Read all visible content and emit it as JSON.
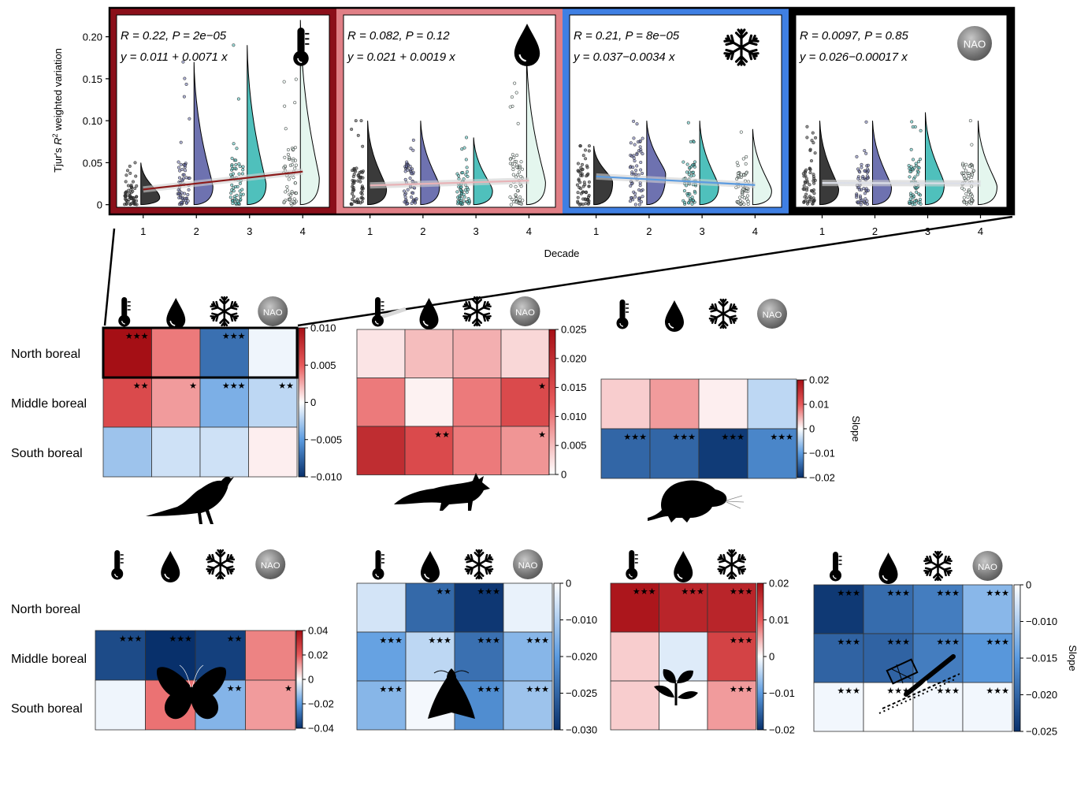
{
  "colors": {
    "pos": "#a50f15",
    "neg": "#08306b",
    "line_pos": "#8b1a1a",
    "line_neg": "#5b9be0",
    "line_flat": "#dcdfe8",
    "rain1": "#3a3a3a",
    "rain2": "#6e72b0",
    "rain3": "#4fc0bc",
    "rain4": "#e4f6ee"
  },
  "top_panel": {
    "ylabel_prefix": "Tjur's",
    "ylabel_r": "R",
    "ylabel_sup": "2",
    "ylabel_suffix": "weighted variation",
    "xlabel": "Decade",
    "yticks": [
      "0",
      "0.05",
      "0.10",
      "0.15",
      "0.20"
    ],
    "xticks": [
      "1",
      "2",
      "3",
      "4"
    ]
  },
  "row_labels": [
    "North boreal",
    "Middle boreal",
    "South boreal"
  ],
  "nao_label": "NAO",
  "stars": {
    "one": "★",
    "two": "★★",
    "three": "★★★"
  },
  "slope_label": "Slope",
  "chart_data": [
    {
      "type": "scatter",
      "panel": "temperature",
      "icon": "thermometer-icon",
      "frame_color": "#8b0f1a",
      "r_text": "R = 0.22, P = 2e−05",
      "eq_text": "y = 0.011 + 0.0071 x",
      "x": [
        1,
        2,
        3,
        4
      ],
      "medians": [
        0.012,
        0.025,
        0.028,
        0.035
      ],
      "max": [
        0.05,
        0.17,
        0.19,
        0.22
      ],
      "fit": {
        "intercept": 0.011,
        "slope": 0.0071
      },
      "xlim": [
        0.5,
        4.5
      ],
      "ylim": [
        -0.005,
        0.225
      ]
    },
    {
      "type": "scatter",
      "panel": "precipitation",
      "icon": "water-drop-icon",
      "frame_color": "#e07f86",
      "r_text": "R = 0.082, P = 0.12",
      "eq_text": "y = 0.021 + 0.0019 x",
      "x": [
        1,
        2,
        3,
        4
      ],
      "medians": [
        0.022,
        0.025,
        0.02,
        0.03
      ],
      "max": [
        0.1,
        0.1,
        0.08,
        0.18
      ],
      "fit": {
        "intercept": 0.021,
        "slope": 0.0019
      },
      "xlim": [
        0.5,
        4.5
      ],
      "ylim": [
        -0.005,
        0.225
      ]
    },
    {
      "type": "scatter",
      "panel": "snow",
      "icon": "snowflake-icon",
      "frame_color": "#3f7fe3",
      "r_text": "R = 0.21, P = 8e−05",
      "eq_text": "y = 0.037−0.0034 x",
      "x": [
        1,
        2,
        3,
        4
      ],
      "medians": [
        0.03,
        0.04,
        0.025,
        0.02
      ],
      "max": [
        0.07,
        0.1,
        0.1,
        0.09
      ],
      "fit": {
        "intercept": 0.037,
        "slope": -0.0034
      },
      "xlim": [
        0.5,
        4.5
      ],
      "ylim": [
        -0.005,
        0.225
      ]
    },
    {
      "type": "scatter",
      "panel": "nao",
      "icon": "nao-badge-icon",
      "frame_color": "#000000",
      "r_text": "R = 0.0097, P = 0.85",
      "eq_text": "y = 0.026−0.00017 x",
      "x": [
        1,
        2,
        3,
        4
      ],
      "medians": [
        0.022,
        0.024,
        0.028,
        0.025
      ],
      "max": [
        0.1,
        0.1,
        0.11,
        0.1
      ],
      "fit": {
        "intercept": 0.026,
        "slope": -0.00017
      },
      "xlim": [
        0.5,
        4.5
      ],
      "ylim": [
        -0.005,
        0.225
      ]
    },
    {
      "type": "heatmap",
      "taxon": "birds",
      "silhouette": "bird-icon",
      "rows": [
        "North boreal",
        "Middle boreal",
        "South boreal"
      ],
      "columns": [
        "thermometer",
        "drop",
        "snowflake",
        "NAO"
      ],
      "values": [
        [
          0.01,
          0.004,
          -0.007,
          -0.0005
        ],
        [
          0.006,
          0.003,
          -0.004,
          -0.002
        ],
        [
          -0.003,
          -0.0015,
          -0.0015,
          0.0005
        ]
      ],
      "stars": [
        [
          3,
          0,
          3,
          0
        ],
        [
          2,
          1,
          3,
          2
        ],
        [
          0,
          0,
          0,
          0
        ]
      ],
      "vrange": [
        -0.01,
        0.01
      ],
      "cbar_ticks": [
        "0.010",
        "0.005",
        "0",
        "−0.005",
        "−0.010"
      ],
      "highlight_row": 0
    },
    {
      "type": "heatmap",
      "taxon": "mammals",
      "silhouette": "fox-icon",
      "rows": [
        "North boreal",
        "Middle boreal",
        "South boreal"
      ],
      "columns": [
        "thermometer",
        "drop",
        "snowflake",
        "NAO"
      ],
      "values": [
        [
          0.002,
          0.005,
          0.006,
          0.003
        ],
        [
          0.01,
          0.001,
          0.01,
          0.015
        ],
        [
          0.02,
          0.015,
          0.01,
          0.008
        ]
      ],
      "stars": [
        [
          0,
          0,
          0,
          0
        ],
        [
          0,
          0,
          0,
          1
        ],
        [
          0,
          2,
          0,
          1
        ]
      ],
      "vrange": [
        0,
        0.025
      ],
      "cbar_ticks": [
        "0.025",
        "0.020",
        "0.015",
        "0.010",
        "0.005",
        "0"
      ]
    },
    {
      "type": "heatmap",
      "taxon": "small mammals",
      "silhouette": "vole-icon",
      "rows": [
        "North boreal",
        "Middle boreal",
        "South boreal"
      ],
      "columns": [
        "thermometer",
        "drop",
        "snowflake",
        "NAO"
      ],
      "values": [
        [
          null,
          null,
          null,
          null
        ],
        [
          0.003,
          0.006,
          0.001,
          -0.004
        ],
        [
          -0.015,
          -0.015,
          -0.019,
          -0.012
        ]
      ],
      "stars": [
        [
          0,
          0,
          0,
          0
        ],
        [
          0,
          0,
          0,
          0
        ],
        [
          3,
          3,
          3,
          3
        ]
      ],
      "vrange": [
        -0.02,
        0.02
      ],
      "cbar_ticks": [
        "0.02",
        "0.01",
        "0",
        "−0.01",
        "−0.02"
      ],
      "show_slope": true
    },
    {
      "type": "heatmap",
      "taxon": "butterflies",
      "silhouette": "butterfly-icon",
      "rows": [
        "North boreal",
        "Middle boreal",
        "South boreal"
      ],
      "columns": [
        "thermometer",
        "drop",
        "snowflake",
        "NAO"
      ],
      "values": [
        [
          null,
          null,
          null,
          null
        ],
        [
          -0.035,
          -0.04,
          -0.037,
          0.015
        ],
        [
          -0.002,
          0.017,
          -0.015,
          0.012
        ]
      ],
      "stars": [
        [
          0,
          0,
          0,
          0
        ],
        [
          3,
          3,
          2,
          0
        ],
        [
          0,
          2,
          2,
          1
        ]
      ],
      "vrange": [
        -0.04,
        0.04
      ],
      "cbar_ticks": [
        "0.04",
        "0.02",
        "0",
        "−0.02",
        "−0.04"
      ]
    },
    {
      "type": "heatmap",
      "taxon": "moths",
      "silhouette": "moth-icon",
      "rows": [
        "North boreal",
        "Middle boreal",
        "South boreal"
      ],
      "columns": [
        "thermometer",
        "drop",
        "snowflake",
        "NAO"
      ],
      "values": [
        [
          -0.004,
          -0.022,
          -0.029,
          -0.002
        ],
        [
          -0.014,
          -0.006,
          -0.021,
          -0.011
        ],
        [
          -0.011,
          -0.001,
          -0.017,
          -0.009
        ]
      ],
      "stars": [
        [
          0,
          2,
          3,
          0
        ],
        [
          3,
          3,
          3,
          3
        ],
        [
          3,
          0,
          3,
          3
        ]
      ],
      "vrange": [
        -0.03,
        0
      ],
      "cbar_ticks": [
        "0",
        "−0.010",
        "−0.020",
        "−0.025",
        "−0.030"
      ]
    },
    {
      "type": "heatmap",
      "taxon": "plants",
      "silhouette": "plant-sprout-icon",
      "rows": [
        "North boreal",
        "Middle boreal",
        "South boreal"
      ],
      "columns": [
        "thermometer",
        "drop",
        "snowflake"
      ],
      "values": [
        [
          0.019,
          0.017,
          0.017
        ],
        [
          0.003,
          -0.002,
          0.013
        ],
        [
          0.003,
          0.0,
          0.006
        ]
      ],
      "stars": [
        [
          3,
          3,
          3
        ],
        [
          0,
          0,
          3
        ],
        [
          0,
          0,
          3
        ]
      ],
      "vrange": [
        -0.02,
        0.02
      ],
      "cbar_ticks": [
        "0.02",
        "0.01",
        "0",
        "−0.01",
        "−0.02"
      ]
    },
    {
      "type": "heatmap",
      "taxon": "fish / trapping",
      "silhouette": "trap-line-icon",
      "rows": [
        "North boreal",
        "Middle boreal",
        "South boreal"
      ],
      "columns": [
        "thermometer",
        "drop",
        "snowflake",
        "NAO"
      ],
      "values": [
        [
          -0.024,
          -0.018,
          -0.016,
          -0.009
        ],
        [
          -0.019,
          -0.019,
          -0.016,
          -0.013
        ],
        [
          -0.001,
          0.0,
          -0.001,
          -0.001
        ]
      ],
      "stars": [
        [
          3,
          3,
          3,
          3
        ],
        [
          3,
          3,
          3,
          3
        ],
        [
          3,
          3,
          3,
          3
        ]
      ],
      "vrange": [
        -0.025,
        0
      ],
      "cbar_ticks": [
        "0",
        "−0.010",
        "−0.015",
        "−0.020",
        "−0.025"
      ],
      "show_slope": true
    }
  ]
}
